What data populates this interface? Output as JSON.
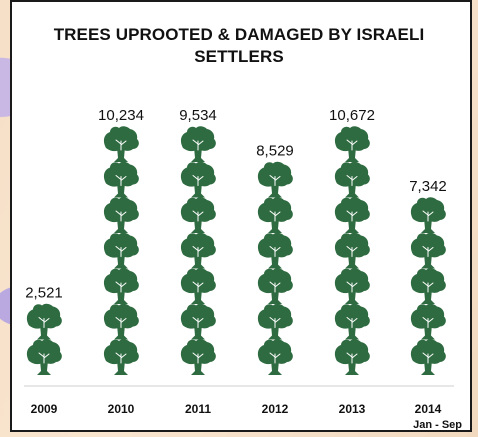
{
  "chart_data": {
    "type": "bar",
    "title": "TREES UPROOTED & DAMAGED BY ISRAELI SETTLERS",
    "categories": [
      "2009",
      "2010",
      "2011",
      "2012",
      "2013",
      "2014"
    ],
    "values": [
      2521,
      10234,
      9534,
      8529,
      10672,
      7342
    ],
    "value_labels": [
      "2,521",
      "10,234",
      "9,534",
      "8,529",
      "10,672",
      "7,342"
    ],
    "category_notes": {
      "2014": "Jan - Sep"
    },
    "icon_unit": "tree-icon",
    "icons_per_bar": [
      2,
      7,
      7,
      6,
      7,
      5
    ],
    "tree_color": "#2e6b40",
    "xlabel": "",
    "ylabel": "",
    "grid": false,
    "legend": "none"
  }
}
